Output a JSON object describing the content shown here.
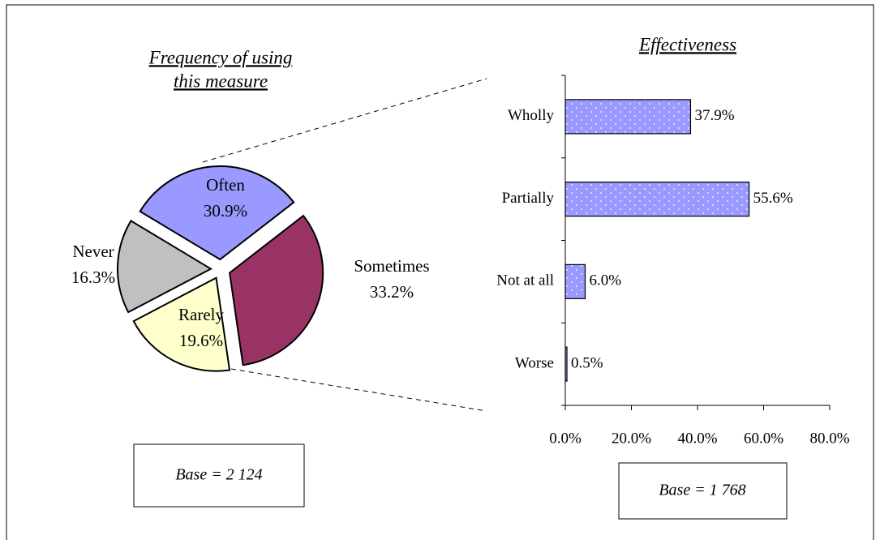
{
  "chart_data": [
    {
      "type": "pie",
      "title": [
        "Frequency of using",
        "this measure"
      ],
      "categories": [
        "Often",
        "Sometimes",
        "Rarely",
        "Never"
      ],
      "values": [
        30.9,
        33.2,
        19.6,
        16.3
      ],
      "value_labels": [
        "30.9%",
        "33.2%",
        "19.6%",
        "16.3%"
      ],
      "colors": [
        "#9999ff",
        "#993366",
        "#ffffcc",
        "#c0c0c0"
      ],
      "annotation": "Base = 2 124"
    },
    {
      "type": "hbar",
      "title": [
        "Effectiveness"
      ],
      "categories": [
        "Wholly",
        "Partially",
        "Not at all",
        "Worse"
      ],
      "values": [
        37.9,
        55.6,
        6.0,
        0.5
      ],
      "value_labels": [
        "37.9%",
        "55.6%",
        "6.0%",
        "0.5%"
      ],
      "color": "#9999ff",
      "xlim": [
        0,
        80
      ],
      "xticks": [
        {
          "value": 0,
          "label": "0.0%"
        },
        {
          "value": 20,
          "label": "20.0%"
        },
        {
          "value": 40,
          "label": "40.0%"
        },
        {
          "value": 60,
          "label": "60.0%"
        },
        {
          "value": 80,
          "label": "80.0%"
        }
      ],
      "annotation": "Base = 1 768"
    }
  ]
}
